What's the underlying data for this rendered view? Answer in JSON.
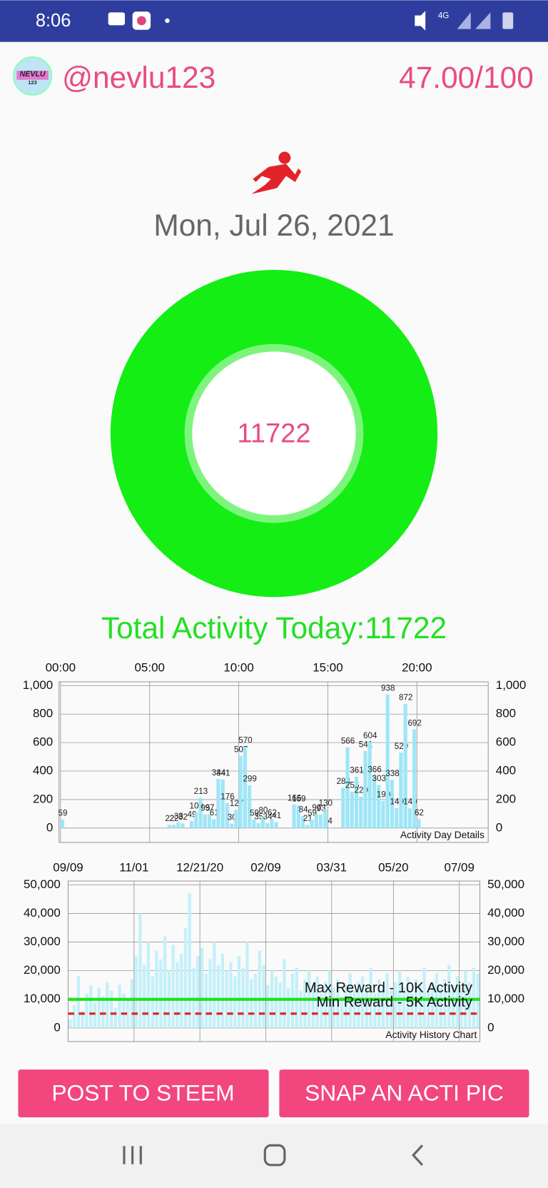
{
  "status_bar": {
    "time": "8:06",
    "network": "4G"
  },
  "header": {
    "username": "@nevlu123",
    "score": "47.00/100",
    "logo_text": [
      "NEVLU",
      "123"
    ]
  },
  "date": "Mon, Jul 26, 2021",
  "ring": {
    "value": 11722
  },
  "total_activity": "Total Activity Today:11722",
  "chart_data": [
    {
      "type": "bar",
      "annotation": "Activity Day Details",
      "color": "#9fe6f7",
      "data_labels": true,
      "grid": true,
      "x": [
        0,
        6,
        6.25,
        6.5,
        6.75,
        7.25,
        7.5,
        7.75,
        8,
        8.25,
        8.5,
        8.75,
        9,
        9.25,
        9.5,
        9.75,
        10,
        10.25,
        10.5,
        10.75,
        11,
        11.25,
        11.5,
        11.75,
        12,
        13,
        13.25,
        13.5,
        13.75,
        14,
        14.25,
        14.5,
        14.75,
        15,
        15.75,
        16,
        16.25,
        16.5,
        16.75,
        17,
        17.25,
        17.5,
        17.75,
        18,
        18.25,
        18.5,
        18.75,
        19,
        19.25,
        19.5,
        19.75,
        20
      ],
      "values": [
        59,
        22,
        22,
        38,
        32,
        49,
        109,
        213,
        95,
        97,
        61,
        344,
        341,
        176,
        30,
        127,
        507,
        570,
        299,
        59,
        35,
        80,
        34,
        62,
        41,
        166,
        159,
        84,
        21,
        59,
        96,
        93,
        130,
        4,
        283,
        566,
        255,
        361,
        220,
        541,
        604,
        366,
        303,
        190,
        938,
        338,
        140,
        529,
        872,
        140,
        692,
        62
      ],
      "xlim": [
        0,
        24
      ],
      "xticks": [
        {
          "value": 0,
          "label": "00:00"
        },
        {
          "value": 5,
          "label": "05:00"
        },
        {
          "value": 10,
          "label": "10:00"
        },
        {
          "value": 15,
          "label": "15:00"
        },
        {
          "value": 20,
          "label": "20:00"
        }
      ],
      "ylim": [
        0,
        1000
      ],
      "yticks": [
        0,
        200,
        400,
        600,
        800,
        {
          "value": 1000,
          "label": "1,000"
        }
      ]
    },
    {
      "type": "bar",
      "annotation": "Activity History Chart",
      "color": "#c4f0f9",
      "grid": true,
      "categories": [
        "09/09",
        null,
        null,
        null,
        null,
        null,
        null,
        null,
        null,
        null,
        null,
        null,
        null,
        null,
        null,
        null,
        "11/01",
        null,
        null,
        null,
        null,
        null,
        null,
        null,
        null,
        null,
        null,
        null,
        null,
        null,
        null,
        null,
        "12/21/20",
        null,
        null,
        null,
        null,
        null,
        null,
        null,
        null,
        null,
        null,
        null,
        null,
        null,
        null,
        null,
        "02/09",
        null,
        null,
        null,
        null,
        null,
        null,
        null,
        null,
        null,
        null,
        null,
        null,
        null,
        null,
        null,
        "03/31",
        null,
        null,
        null,
        null,
        null,
        null,
        null,
        null,
        null,
        null,
        null,
        null,
        null,
        null,
        "05/20",
        null,
        null,
        null,
        null,
        null,
        null,
        null,
        null,
        null,
        null,
        null,
        null,
        null,
        null,
        null,
        "07/09",
        null,
        null,
        null,
        null
      ],
      "values": [
        3000,
        8000,
        18000,
        6000,
        12000,
        15000,
        9000,
        14000,
        11000,
        16000,
        13000,
        7000,
        15000,
        12000,
        10000,
        17000,
        25000,
        40000,
        22000,
        30000,
        18000,
        27000,
        24000,
        32000,
        20000,
        29000,
        23000,
        26000,
        35000,
        47000,
        21000,
        25000,
        28000,
        19000,
        24000,
        30000,
        22000,
        26000,
        20000,
        23000,
        18000,
        25000,
        21000,
        30000,
        17000,
        19000,
        27000,
        22000,
        15000,
        20000,
        18000,
        16000,
        24000,
        14000,
        19000,
        21000,
        13000,
        17000,
        20000,
        15000,
        18000,
        12000,
        16000,
        20000,
        14000,
        17000,
        11000,
        15000,
        19000,
        13000,
        16000,
        18000,
        14000,
        21000,
        12000,
        17000,
        15000,
        19000,
        13000,
        16000,
        20000,
        14000,
        18000,
        12000,
        17000,
        15000,
        21000,
        13000,
        16000,
        19000,
        14000,
        17000,
        22000,
        15000,
        18000,
        13000,
        20000,
        16000,
        21000,
        19000
      ],
      "ylim": [
        0,
        50000
      ],
      "yticks": [
        0,
        {
          "value": 10000,
          "label": "10,000"
        },
        {
          "value": 20000,
          "label": "20,000"
        },
        {
          "value": 30000,
          "label": "30,000"
        },
        {
          "value": 40000,
          "label": "40,000"
        },
        {
          "value": 50000,
          "label": "50,000"
        }
      ],
      "reference_lines": [
        {
          "label": "Max Reward - 10K Activity",
          "value": 10000,
          "color": "#1ee21e",
          "dashed": false
        },
        {
          "label": "Min Reward - 5K Activity",
          "value": 5000,
          "color": "#e02424",
          "dashed": true
        }
      ]
    }
  ],
  "buttons": [
    "POST TO STEEM",
    "SNAP AN ACTI PIC"
  ]
}
